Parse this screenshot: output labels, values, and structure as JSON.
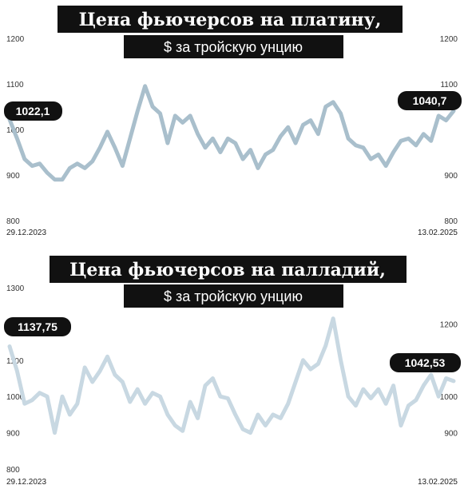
{
  "chart_data": [
    {
      "type": "line",
      "title": "Цена фьючерсов на платину,",
      "subtitle": "$ за тройскую унцию",
      "x_start": "29.12.2023",
      "x_end": "13.02.2025",
      "ylim": [
        800,
        1200
      ],
      "left_ticks": [
        "1200",
        "1100",
        "1000",
        "900",
        "800"
      ],
      "right_ticks": [
        "1200",
        "1100",
        "900",
        "800"
      ],
      "start_label": "1022,1",
      "end_label": "1040,7",
      "grid": false,
      "color": "#A9BFCC",
      "series": [
        {
          "x": [
            "2023-12-29",
            "2024-01-05",
            "2024-01-12",
            "2024-01-19",
            "2024-01-26",
            "2024-02-02",
            "2024-02-09",
            "2024-02-16",
            "2024-02-23",
            "2024-03-01",
            "2024-03-08",
            "2024-03-15",
            "2024-03-22",
            "2024-03-29",
            "2024-04-05",
            "2024-04-12",
            "2024-04-19",
            "2024-04-26",
            "2024-05-03",
            "2024-05-10",
            "2024-05-17",
            "2024-05-24",
            "2024-05-31",
            "2024-06-07",
            "2024-06-14",
            "2024-06-21",
            "2024-06-28",
            "2024-07-05",
            "2024-07-12",
            "2024-07-19",
            "2024-07-26",
            "2024-08-02",
            "2024-08-09",
            "2024-08-16",
            "2024-08-23",
            "2024-08-30",
            "2024-09-06",
            "2024-09-13",
            "2024-09-20",
            "2024-09-27",
            "2024-10-04",
            "2024-10-11",
            "2024-10-18",
            "2024-10-25",
            "2024-11-01",
            "2024-11-08",
            "2024-11-15",
            "2024-11-22",
            "2024-11-29",
            "2024-12-06",
            "2024-12-13",
            "2024-12-20",
            "2024-12-27",
            "2025-01-03",
            "2025-01-10",
            "2025-01-17",
            "2025-01-24",
            "2025-01-31",
            "2025-02-07",
            "2025-02-13"
          ],
          "values": [
            1022,
            980,
            935,
            920,
            925,
            905,
            890,
            890,
            915,
            925,
            915,
            930,
            960,
            995,
            960,
            920,
            980,
            1040,
            1095,
            1050,
            1035,
            970,
            1030,
            1015,
            1030,
            990,
            960,
            980,
            950,
            980,
            970,
            935,
            955,
            915,
            945,
            955,
            985,
            1005,
            970,
            1010,
            1020,
            990,
            1050,
            1060,
            1035,
            980,
            965,
            960,
            935,
            945,
            920,
            950,
            975,
            980,
            965,
            990,
            975,
            1030,
            1020,
            1040.7
          ]
        }
      ]
    },
    {
      "type": "line",
      "title": "Цена фьючерсов на палладий,",
      "subtitle": "$ за тройскую унцию",
      "x_start": "29.12.2023",
      "x_end": "13.02.2025",
      "ylim": [
        800,
        1300
      ],
      "left_ticks": [
        "1300",
        "1100",
        "1000",
        "900",
        "800"
      ],
      "right_ticks": [
        "1200",
        "1000",
        "900"
      ],
      "start_label": "1137,75",
      "end_label": "1042,53",
      "grid": false,
      "color": "#C8D8E2",
      "series": [
        {
          "x": [
            "2023-12-29",
            "2024-01-05",
            "2024-01-12",
            "2024-01-19",
            "2024-01-26",
            "2024-02-02",
            "2024-02-09",
            "2024-02-16",
            "2024-02-23",
            "2024-03-01",
            "2024-03-08",
            "2024-03-15",
            "2024-03-22",
            "2024-03-29",
            "2024-04-05",
            "2024-04-12",
            "2024-04-19",
            "2024-04-26",
            "2024-05-03",
            "2024-05-10",
            "2024-05-17",
            "2024-05-24",
            "2024-05-31",
            "2024-06-07",
            "2024-06-14",
            "2024-06-21",
            "2024-06-28",
            "2024-07-05",
            "2024-07-12",
            "2024-07-19",
            "2024-07-26",
            "2024-08-02",
            "2024-08-09",
            "2024-08-16",
            "2024-08-23",
            "2024-08-30",
            "2024-09-06",
            "2024-09-13",
            "2024-09-20",
            "2024-09-27",
            "2024-10-04",
            "2024-10-11",
            "2024-10-18",
            "2024-10-25",
            "2024-11-01",
            "2024-11-08",
            "2024-11-15",
            "2024-11-22",
            "2024-11-29",
            "2024-12-06",
            "2024-12-13",
            "2024-12-20",
            "2024-12-27",
            "2025-01-03",
            "2025-01-10",
            "2025-01-17",
            "2025-01-24",
            "2025-01-31",
            "2025-02-07",
            "2025-02-13"
          ],
          "values": [
            1138,
            1070,
            980,
            990,
            1010,
            1000,
            900,
            1000,
            950,
            980,
            1080,
            1040,
            1070,
            1110,
            1060,
            1040,
            985,
            1020,
            980,
            1010,
            1000,
            950,
            920,
            905,
            985,
            940,
            1030,
            1050,
            1000,
            995,
            950,
            910,
            900,
            950,
            920,
            950,
            940,
            980,
            1040,
            1100,
            1075,
            1090,
            1140,
            1215,
            1100,
            1000,
            975,
            1020,
            995,
            1020,
            980,
            1030,
            920,
            975,
            990,
            1030,
            1060,
            1000,
            1050,
            1042.53
          ]
        }
      ]
    }
  ]
}
